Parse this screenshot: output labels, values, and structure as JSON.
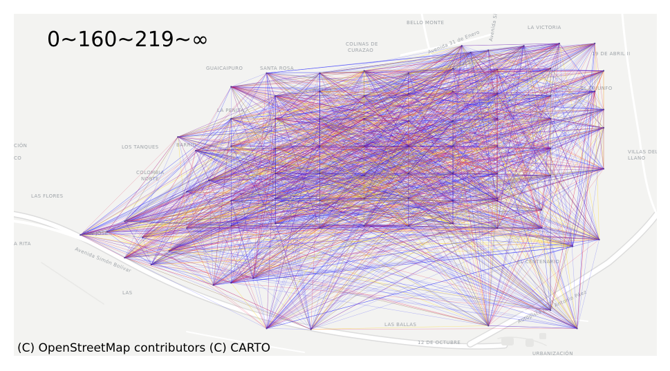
{
  "legend": {
    "title": "0~160~219~∞"
  },
  "attribution": "(C) OpenStreetMap contributors (C) CARTO",
  "basemap": {
    "places": [
      "BELLO MONTE",
      "LA VICTORIA",
      "COLINAS DE",
      "CURAZAO",
      "19 DE ABRIL II",
      "GUAICAIPURO",
      "SANTA ROSA",
      "CURAZAO",
      "LA PENITA",
      "CIÓN",
      "CO",
      "LOS TANQUES",
      "BARRIO",
      "COLOMBIA",
      "NORTE",
      "LAS FLORES",
      "VILLAS DEL",
      "LLANO",
      "SAN JOSÉ",
      "A RITA",
      "Avenida Simón Bolívar",
      "EL CENTENARIO",
      "LAS",
      "Autopista José Antonio Páez",
      "LAS BALLAS",
      "12 DE OCTUBRE",
      "URBANIZACIÓN",
      "Avenida 31 de Enero",
      "Avenida Simón Bolívar",
      "EL TRIUNFO"
    ],
    "colors": {
      "land": "#f3f3f1",
      "road": "#ffffff",
      "road_edge": "#dcdcdc",
      "label": "#9ea3a8"
    }
  },
  "network": {
    "bins": [
      "0~160",
      "160~219",
      "219~∞"
    ],
    "colors": [
      "#1a1aff",
      "#e6194b",
      "#ffd700"
    ],
    "nodes": [
      [
        -67.2,
        10.16
      ],
      [
        -67.1,
        10.158
      ],
      [
        -66.7,
        10.166
      ],
      [
        -66.5,
        10.16
      ],
      [
        -66.56,
        10.2
      ],
      [
        -67.32,
        10.255
      ],
      [
        -67.28,
        10.26
      ],
      [
        -67.23,
        10.27
      ],
      [
        -67.52,
        10.315
      ],
      [
        -67.46,
        10.3
      ],
      [
        -67.42,
        10.33
      ],
      [
        -67.62,
        10.365
      ],
      [
        -67.56,
        10.372
      ],
      [
        -67.48,
        10.36
      ],
      [
        -67.52,
        10.395
      ],
      [
        -67.38,
        10.38
      ],
      [
        -67.28,
        10.385
      ],
      [
        -67.18,
        10.39
      ],
      [
        -67.08,
        10.38
      ],
      [
        -66.98,
        10.385
      ],
      [
        -66.88,
        10.385
      ],
      [
        -66.78,
        10.39
      ],
      [
        -66.68,
        10.38
      ],
      [
        -66.58,
        10.38
      ],
      [
        -66.51,
        10.34
      ],
      [
        -66.45,
        10.355
      ],
      [
        -66.58,
        10.42
      ],
      [
        -66.68,
        10.44
      ],
      [
        -66.78,
        10.44
      ],
      [
        -66.88,
        10.445
      ],
      [
        -66.98,
        10.445
      ],
      [
        -67.08,
        10.44
      ],
      [
        -67.18,
        10.445
      ],
      [
        -67.28,
        10.44
      ],
      [
        -67.38,
        10.46
      ],
      [
        -67.33,
        10.485
      ],
      [
        -67.18,
        10.5
      ],
      [
        -67.08,
        10.5
      ],
      [
        -66.98,
        10.495
      ],
      [
        -66.88,
        10.5
      ],
      [
        -66.78,
        10.5
      ],
      [
        -66.68,
        10.5
      ],
      [
        -66.56,
        10.495
      ],
      [
        -66.44,
        10.51
      ],
      [
        -66.56,
        10.555
      ],
      [
        -66.68,
        10.56
      ],
      [
        -66.78,
        10.56
      ],
      [
        -66.88,
        10.56
      ],
      [
        -66.98,
        10.56
      ],
      [
        -67.08,
        10.56
      ],
      [
        -67.18,
        10.555
      ],
      [
        -67.28,
        10.56
      ],
      [
        -67.36,
        10.55
      ],
      [
        -67.4,
        10.58
      ],
      [
        -67.28,
        10.62
      ],
      [
        -67.08,
        10.62
      ],
      [
        -66.88,
        10.615
      ],
      [
        -66.78,
        10.615
      ],
      [
        -66.68,
        10.62
      ],
      [
        -66.56,
        10.62
      ],
      [
        -66.44,
        10.6
      ],
      [
        -66.44,
        10.64
      ],
      [
        -66.46,
        10.68
      ],
      [
        -66.56,
        10.67
      ],
      [
        -66.68,
        10.675
      ],
      [
        -66.78,
        10.68
      ],
      [
        -66.88,
        10.675
      ],
      [
        -66.98,
        10.67
      ],
      [
        -67.08,
        10.68
      ],
      [
        -67.18,
        10.67
      ],
      [
        -67.28,
        10.69
      ],
      [
        -67.2,
        10.72
      ],
      [
        -67.08,
        10.72
      ],
      [
        -66.98,
        10.725
      ],
      [
        -66.88,
        10.72
      ],
      [
        -66.78,
        10.73
      ],
      [
        -66.68,
        10.728
      ],
      [
        -66.56,
        10.73
      ],
      [
        -66.44,
        10.725
      ],
      [
        -66.76,
        10.78
      ],
      [
        -66.74,
        10.765
      ],
      [
        -66.7,
        10.77
      ],
      [
        -66.62,
        10.78
      ],
      [
        -66.54,
        10.785
      ],
      [
        -66.46,
        10.785
      ],
      [
        -66.88,
        10.56
      ],
      [
        -66.98,
        10.62
      ],
      [
        -67.18,
        10.62
      ],
      [
        -66.68,
        10.445
      ]
    ],
    "edge_count": 2600
  }
}
